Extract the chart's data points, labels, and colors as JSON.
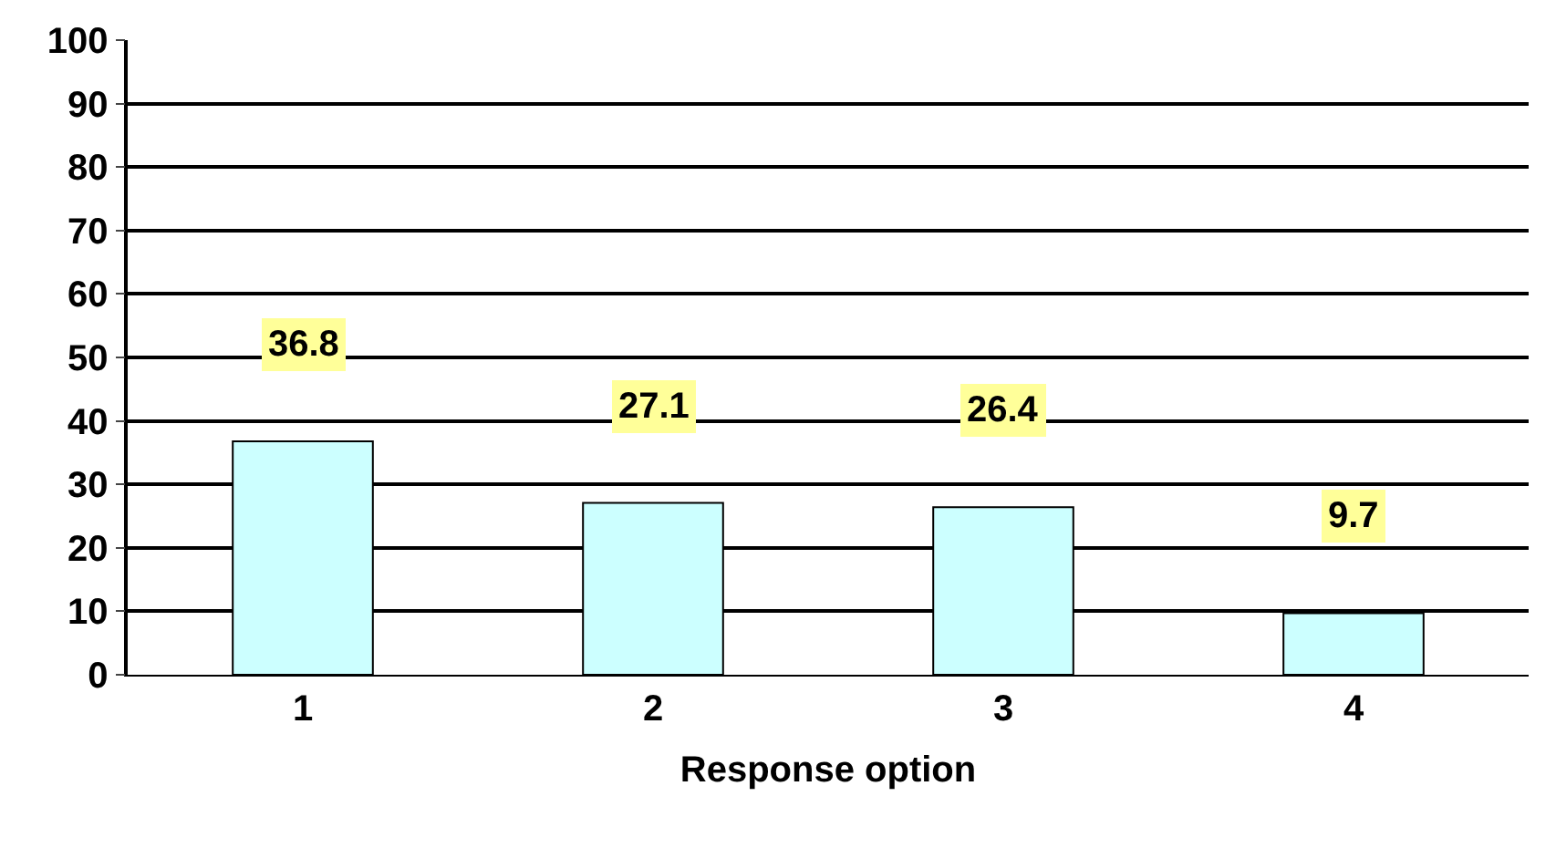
{
  "chart_data": {
    "type": "bar",
    "xlabel": "Response option",
    "categories": [
      "1",
      "2",
      "3",
      "4"
    ],
    "values": [
      36.8,
      27.1,
      26.4,
      9.7
    ],
    "color": "#ccffff",
    "ylim": [
      0,
      100
    ],
    "yticks": [
      0,
      10,
      20,
      30,
      40,
      50,
      60,
      70,
      80,
      90,
      100
    ],
    "grid": "y",
    "data_labels": true
  }
}
